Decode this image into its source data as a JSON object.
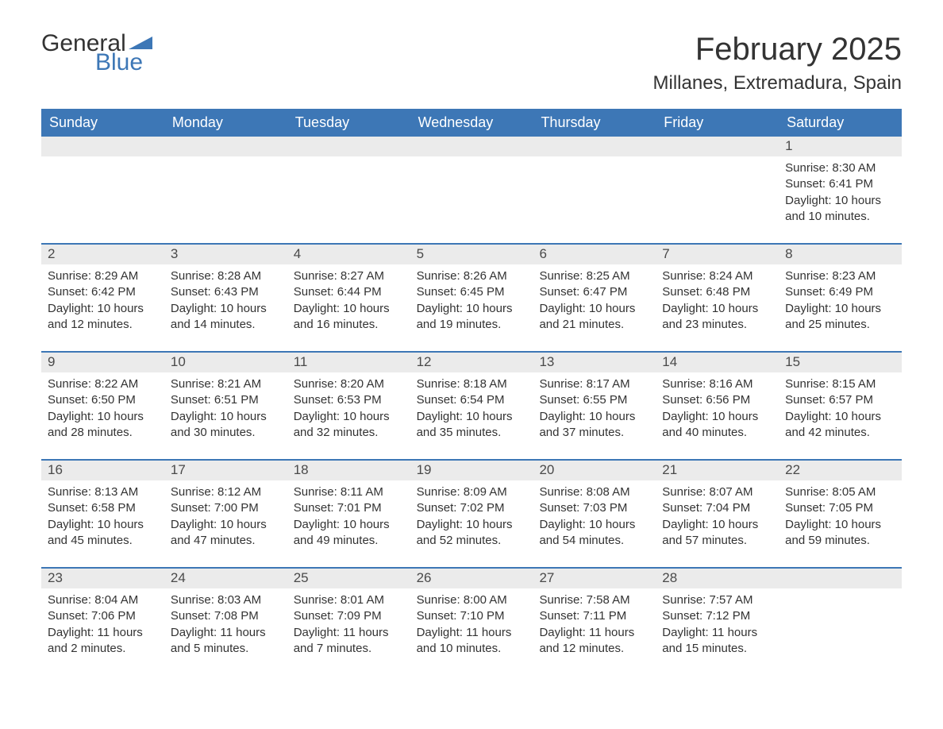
{
  "logo": {
    "part1": "General",
    "part2": "Blue",
    "tri_color": "#3d77b6"
  },
  "title": "February 2025",
  "location": "Millanes, Extremadura, Spain",
  "colors": {
    "header_bg": "#3d77b6",
    "header_text": "#ffffff",
    "daynum_bg": "#ebebeb",
    "row_divider": "#3d77b6",
    "text": "#333333",
    "background": "#ffffff"
  },
  "weekdays": [
    "Sunday",
    "Monday",
    "Tuesday",
    "Wednesday",
    "Thursday",
    "Friday",
    "Saturday"
  ],
  "weeks": [
    [
      {
        "day": "",
        "sunrise": "",
        "sunset": "",
        "daylight": ""
      },
      {
        "day": "",
        "sunrise": "",
        "sunset": "",
        "daylight": ""
      },
      {
        "day": "",
        "sunrise": "",
        "sunset": "",
        "daylight": ""
      },
      {
        "day": "",
        "sunrise": "",
        "sunset": "",
        "daylight": ""
      },
      {
        "day": "",
        "sunrise": "",
        "sunset": "",
        "daylight": ""
      },
      {
        "day": "",
        "sunrise": "",
        "sunset": "",
        "daylight": ""
      },
      {
        "day": "1",
        "sunrise": "Sunrise: 8:30 AM",
        "sunset": "Sunset: 6:41 PM",
        "daylight": "Daylight: 10 hours and 10 minutes."
      }
    ],
    [
      {
        "day": "2",
        "sunrise": "Sunrise: 8:29 AM",
        "sunset": "Sunset: 6:42 PM",
        "daylight": "Daylight: 10 hours and 12 minutes."
      },
      {
        "day": "3",
        "sunrise": "Sunrise: 8:28 AM",
        "sunset": "Sunset: 6:43 PM",
        "daylight": "Daylight: 10 hours and 14 minutes."
      },
      {
        "day": "4",
        "sunrise": "Sunrise: 8:27 AM",
        "sunset": "Sunset: 6:44 PM",
        "daylight": "Daylight: 10 hours and 16 minutes."
      },
      {
        "day": "5",
        "sunrise": "Sunrise: 8:26 AM",
        "sunset": "Sunset: 6:45 PM",
        "daylight": "Daylight: 10 hours and 19 minutes."
      },
      {
        "day": "6",
        "sunrise": "Sunrise: 8:25 AM",
        "sunset": "Sunset: 6:47 PM",
        "daylight": "Daylight: 10 hours and 21 minutes."
      },
      {
        "day": "7",
        "sunrise": "Sunrise: 8:24 AM",
        "sunset": "Sunset: 6:48 PM",
        "daylight": "Daylight: 10 hours and 23 minutes."
      },
      {
        "day": "8",
        "sunrise": "Sunrise: 8:23 AM",
        "sunset": "Sunset: 6:49 PM",
        "daylight": "Daylight: 10 hours and 25 minutes."
      }
    ],
    [
      {
        "day": "9",
        "sunrise": "Sunrise: 8:22 AM",
        "sunset": "Sunset: 6:50 PM",
        "daylight": "Daylight: 10 hours and 28 minutes."
      },
      {
        "day": "10",
        "sunrise": "Sunrise: 8:21 AM",
        "sunset": "Sunset: 6:51 PM",
        "daylight": "Daylight: 10 hours and 30 minutes."
      },
      {
        "day": "11",
        "sunrise": "Sunrise: 8:20 AM",
        "sunset": "Sunset: 6:53 PM",
        "daylight": "Daylight: 10 hours and 32 minutes."
      },
      {
        "day": "12",
        "sunrise": "Sunrise: 8:18 AM",
        "sunset": "Sunset: 6:54 PM",
        "daylight": "Daylight: 10 hours and 35 minutes."
      },
      {
        "day": "13",
        "sunrise": "Sunrise: 8:17 AM",
        "sunset": "Sunset: 6:55 PM",
        "daylight": "Daylight: 10 hours and 37 minutes."
      },
      {
        "day": "14",
        "sunrise": "Sunrise: 8:16 AM",
        "sunset": "Sunset: 6:56 PM",
        "daylight": "Daylight: 10 hours and 40 minutes."
      },
      {
        "day": "15",
        "sunrise": "Sunrise: 8:15 AM",
        "sunset": "Sunset: 6:57 PM",
        "daylight": "Daylight: 10 hours and 42 minutes."
      }
    ],
    [
      {
        "day": "16",
        "sunrise": "Sunrise: 8:13 AM",
        "sunset": "Sunset: 6:58 PM",
        "daylight": "Daylight: 10 hours and 45 minutes."
      },
      {
        "day": "17",
        "sunrise": "Sunrise: 8:12 AM",
        "sunset": "Sunset: 7:00 PM",
        "daylight": "Daylight: 10 hours and 47 minutes."
      },
      {
        "day": "18",
        "sunrise": "Sunrise: 8:11 AM",
        "sunset": "Sunset: 7:01 PM",
        "daylight": "Daylight: 10 hours and 49 minutes."
      },
      {
        "day": "19",
        "sunrise": "Sunrise: 8:09 AM",
        "sunset": "Sunset: 7:02 PM",
        "daylight": "Daylight: 10 hours and 52 minutes."
      },
      {
        "day": "20",
        "sunrise": "Sunrise: 8:08 AM",
        "sunset": "Sunset: 7:03 PM",
        "daylight": "Daylight: 10 hours and 54 minutes."
      },
      {
        "day": "21",
        "sunrise": "Sunrise: 8:07 AM",
        "sunset": "Sunset: 7:04 PM",
        "daylight": "Daylight: 10 hours and 57 minutes."
      },
      {
        "day": "22",
        "sunrise": "Sunrise: 8:05 AM",
        "sunset": "Sunset: 7:05 PM",
        "daylight": "Daylight: 10 hours and 59 minutes."
      }
    ],
    [
      {
        "day": "23",
        "sunrise": "Sunrise: 8:04 AM",
        "sunset": "Sunset: 7:06 PM",
        "daylight": "Daylight: 11 hours and 2 minutes."
      },
      {
        "day": "24",
        "sunrise": "Sunrise: 8:03 AM",
        "sunset": "Sunset: 7:08 PM",
        "daylight": "Daylight: 11 hours and 5 minutes."
      },
      {
        "day": "25",
        "sunrise": "Sunrise: 8:01 AM",
        "sunset": "Sunset: 7:09 PM",
        "daylight": "Daylight: 11 hours and 7 minutes."
      },
      {
        "day": "26",
        "sunrise": "Sunrise: 8:00 AM",
        "sunset": "Sunset: 7:10 PM",
        "daylight": "Daylight: 11 hours and 10 minutes."
      },
      {
        "day": "27",
        "sunrise": "Sunrise: 7:58 AM",
        "sunset": "Sunset: 7:11 PM",
        "daylight": "Daylight: 11 hours and 12 minutes."
      },
      {
        "day": "28",
        "sunrise": "Sunrise: 7:57 AM",
        "sunset": "Sunset: 7:12 PM",
        "daylight": "Daylight: 11 hours and 15 minutes."
      },
      {
        "day": "",
        "sunrise": "",
        "sunset": "",
        "daylight": ""
      }
    ]
  ]
}
